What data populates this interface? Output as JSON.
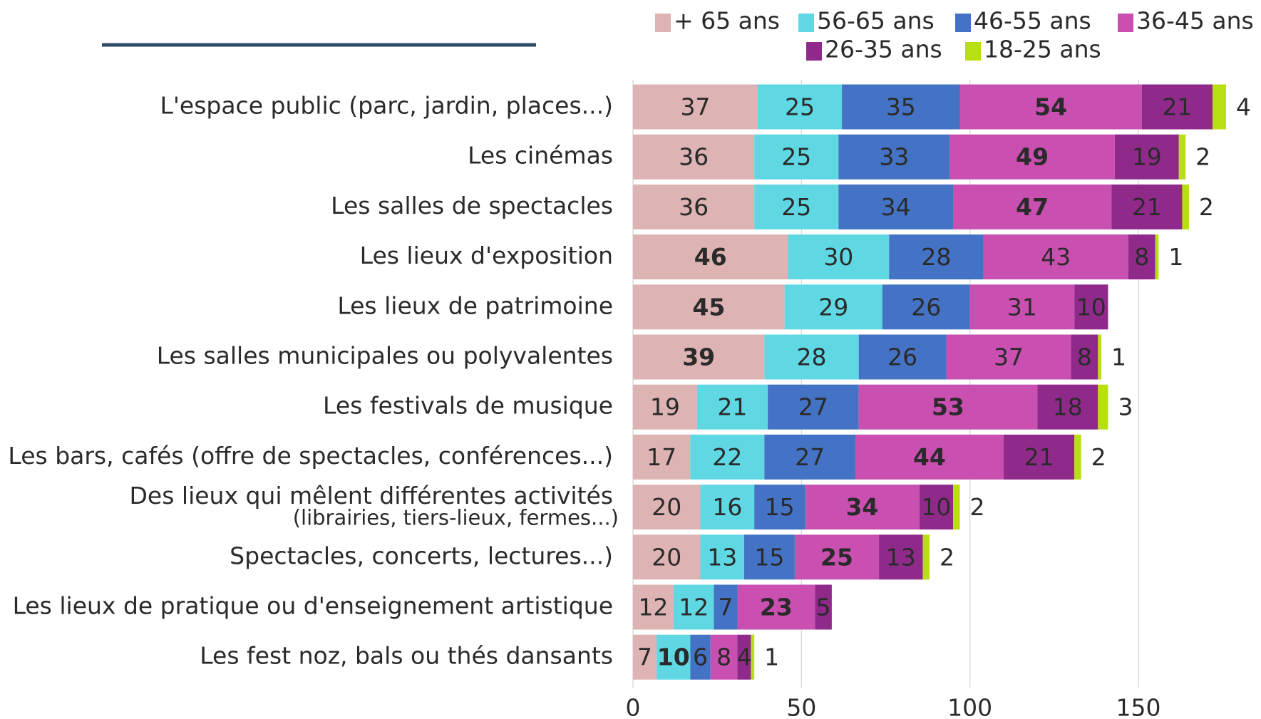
{
  "chart_data": {
    "type": "stacked_barh",
    "categories": [
      "L'espace public (parc, jardin, places...)",
      "Les cinémas",
      "Les salles de spectacles",
      "Les lieux d'exposition",
      "Les lieux de patrimoine",
      "Les salles municipales ou polyvalentes",
      "Les festivals de musique",
      "Les bars, cafés (offre de spectacles, conférences...)",
      [
        "Des lieux qui mêlent différentes activités",
        "(librairies, tiers-lieux, fermes...)"
      ],
      "Spectacles, concerts, lectures...)",
      "Les lieux de pratique ou d'enseignement artistique",
      "Les fest noz, bals ou thés dansants"
    ],
    "series": [
      {
        "name": "+ 65 ans",
        "color": "#ddb3b3",
        "values": [
          37,
          36,
          36,
          46,
          45,
          39,
          19,
          17,
          20,
          20,
          12,
          7
        ]
      },
      {
        "name": "56-65 ans",
        "color": "#5fd8e3",
        "values": [
          25,
          25,
          25,
          30,
          29,
          28,
          21,
          22,
          16,
          13,
          12,
          10
        ]
      },
      {
        "name": "46-55 ans",
        "color": "#4472c4",
        "values": [
          35,
          33,
          34,
          28,
          26,
          26,
          27,
          27,
          15,
          15,
          7,
          6
        ]
      },
      {
        "name": "36-45 ans",
        "color": "#c94fb0",
        "values": [
          54,
          49,
          47,
          43,
          31,
          37,
          53,
          44,
          34,
          25,
          23,
          8
        ]
      },
      {
        "name": "26-35 ans",
        "color": "#8f2a8b",
        "values": [
          21,
          19,
          21,
          8,
          10,
          8,
          18,
          21,
          10,
          13,
          5,
          4
        ]
      },
      {
        "name": "18-25 ans",
        "color": "#b7df12",
        "values": [
          4,
          2,
          2,
          1,
          null,
          1,
          3,
          2,
          2,
          2,
          null,
          1
        ]
      }
    ],
    "xlim": [
      0,
      180
    ],
    "xticks": [
      0,
      50,
      100,
      150
    ],
    "grid": true
  }
}
